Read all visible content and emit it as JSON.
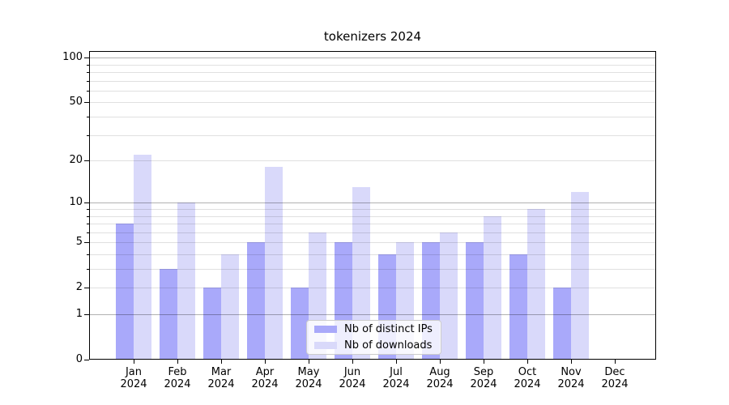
{
  "title": "tokenizers 2024",
  "legend": {
    "items": [
      {
        "label": "Nb of distinct IPs",
        "color": "#a9a9fa"
      },
      {
        "label": "Nb of downloads",
        "color": "#d9d9fa"
      }
    ]
  },
  "chart_data": {
    "type": "bar",
    "title": "tokenizers 2024",
    "categories": [
      "Jan 2024",
      "Feb 2024",
      "Mar 2024",
      "Apr 2024",
      "May 2024",
      "Jun 2024",
      "Jul 2024",
      "Aug 2024",
      "Sep 2024",
      "Oct 2024",
      "Nov 2024",
      "Dec 2024"
    ],
    "series": [
      {
        "name": "Nb of distinct IPs",
        "color": "#a9a9fa",
        "values": [
          7,
          3,
          2,
          5,
          2,
          5,
          4,
          5,
          5,
          4,
          2,
          0
        ]
      },
      {
        "name": "Nb of downloads",
        "color": "#d9d9fa",
        "values": [
          22,
          10,
          4,
          18,
          6,
          13,
          5,
          6,
          8,
          9,
          12,
          0
        ]
      }
    ],
    "yscale": "log10(1+x)",
    "ylim": [
      0,
      111
    ],
    "ytick_labels": [
      "0",
      "1",
      "2",
      "5",
      "10",
      "20",
      "50",
      "100"
    ],
    "yticks": [
      0,
      1,
      2,
      5,
      10,
      20,
      50,
      100
    ],
    "major_gridlines": [
      1,
      10,
      100
    ],
    "minor_gridlines": [
      2,
      3,
      4,
      5,
      6,
      7,
      8,
      9,
      20,
      30,
      40,
      50,
      60,
      70,
      80,
      90
    ],
    "grid": true,
    "legend_position": "lower center",
    "xlabel": "",
    "ylabel": ""
  }
}
